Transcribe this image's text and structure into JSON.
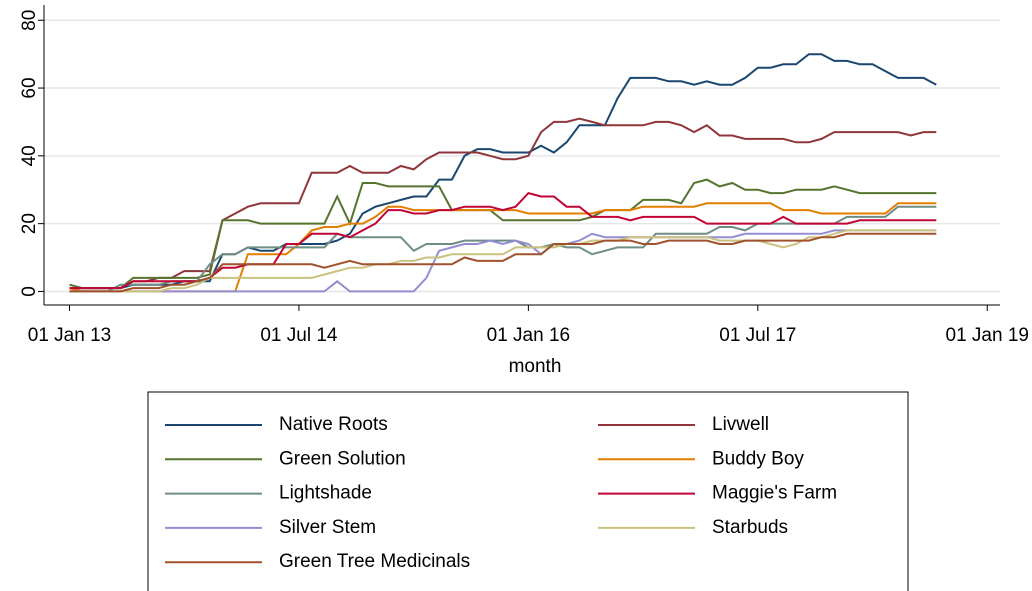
{
  "chart_data": {
    "type": "line",
    "x_label": "month",
    "x": [
      0,
      1,
      2,
      3,
      4,
      5,
      6,
      7,
      8,
      9,
      10,
      11,
      12,
      13,
      14,
      15,
      16,
      17,
      18,
      19,
      20,
      21,
      22,
      23,
      24,
      25,
      26,
      27,
      28,
      29,
      30,
      31,
      32,
      33,
      34,
      35,
      36,
      37,
      38,
      39,
      40,
      41,
      42,
      43,
      44,
      45,
      46,
      47,
      48,
      49,
      50,
      51,
      52,
      53,
      54,
      55,
      56,
      57,
      58,
      59,
      60,
      61,
      62,
      63,
      64,
      65,
      66,
      67,
      68
    ],
    "xlim": [
      -2,
      73
    ],
    "xticks": [
      {
        "value": 0,
        "label": "01 Jan 13"
      },
      {
        "value": 18,
        "label": "01 Jul 14"
      },
      {
        "value": 36,
        "label": "01 Jan 16"
      },
      {
        "value": 54,
        "label": "01 Jul 17"
      },
      {
        "value": 72,
        "label": "01 Jan 19"
      }
    ],
    "ylim": [
      -4,
      84.5
    ],
    "yticks": [
      0,
      20,
      40,
      60,
      80
    ],
    "grid": true,
    "legend": "bottom",
    "series": [
      {
        "name": "Native Roots",
        "color": "#1a476f",
        "values": [
          1,
          1,
          1,
          1,
          1,
          2,
          2,
          2,
          2,
          3,
          3,
          3,
          11,
          11,
          13,
          12,
          12,
          14,
          14,
          14,
          14,
          15,
          17,
          23,
          25,
          26,
          27,
          28,
          28,
          33,
          33,
          40,
          42,
          42,
          41,
          41,
          41,
          43,
          41,
          44,
          49,
          49,
          49,
          57,
          63,
          63,
          63,
          62,
          62,
          61,
          62,
          61,
          61,
          63,
          66,
          66,
          67,
          67,
          70,
          70,
          68,
          68,
          67,
          67,
          65,
          63,
          63,
          63,
          61
        ]
      },
      {
        "name": "Livwell",
        "color": "#90353b",
        "values": [
          1,
          1,
          1,
          1,
          1,
          3,
          3,
          4,
          4,
          6,
          6,
          6,
          21,
          23,
          25,
          26,
          26,
          26,
          26,
          35,
          35,
          35,
          37,
          35,
          35,
          35,
          37,
          36,
          39,
          41,
          41,
          41,
          41,
          40,
          39,
          39,
          40,
          47,
          50,
          50,
          51,
          50,
          49,
          49,
          49,
          49,
          50,
          50,
          49,
          47,
          49,
          46,
          46,
          45,
          45,
          45,
          45,
          44,
          44,
          45,
          47,
          47,
          47,
          47,
          47,
          47,
          46,
          47,
          47
        ]
      },
      {
        "name": "Green Solution",
        "color": "#55752f",
        "values": [
          2,
          1,
          1,
          1,
          1,
          4,
          4,
          4,
          4,
          4,
          4,
          5,
          21,
          21,
          21,
          20,
          20,
          20,
          20,
          20,
          20,
          28,
          20,
          32,
          32,
          31,
          31,
          31,
          31,
          31,
          24,
          24,
          24,
          24,
          21,
          21,
          21,
          21,
          21,
          21,
          21,
          22,
          24,
          24,
          24,
          27,
          27,
          27,
          26,
          32,
          33,
          31,
          32,
          30,
          30,
          29,
          29,
          30,
          30,
          30,
          31,
          30,
          29,
          29,
          29,
          29,
          29,
          29,
          29
        ]
      },
      {
        "name": "Buddy Boy",
        "color": "#e37e00",
        "values": [
          1,
          0,
          0,
          0,
          0,
          0,
          0,
          0,
          0,
          0,
          0,
          0,
          0,
          0,
          11,
          11,
          11,
          11,
          14,
          18,
          19,
          19,
          20,
          20,
          22,
          25,
          25,
          24,
          24,
          24,
          24,
          24,
          24,
          24,
          24,
          24,
          23,
          23,
          23,
          23,
          23,
          23,
          24,
          24,
          24,
          25,
          25,
          25,
          25,
          25,
          26,
          26,
          26,
          26,
          26,
          26,
          24,
          24,
          24,
          23,
          23,
          23,
          23,
          23,
          23,
          26,
          26,
          26,
          26
        ]
      },
      {
        "name": "Lightshade",
        "color": "#6e8e84",
        "values": [
          0,
          0,
          0,
          0,
          2,
          2,
          2,
          2,
          3,
          3,
          3,
          8,
          11,
          11,
          13,
          13,
          13,
          13,
          13,
          13,
          13,
          17,
          16,
          16,
          16,
          16,
          16,
          12,
          14,
          14,
          14,
          15,
          15,
          15,
          15,
          15,
          13,
          13,
          14,
          13,
          13,
          11,
          12,
          13,
          13,
          13,
          17,
          17,
          17,
          17,
          17,
          19,
          19,
          18,
          20,
          20,
          20,
          20,
          20,
          20,
          20,
          22,
          22,
          22,
          22,
          25,
          25,
          25,
          25
        ]
      },
      {
        "name": "Maggie's Farm",
        "color": "#c10534",
        "values": [
          1,
          1,
          1,
          1,
          1,
          3,
          3,
          3,
          3,
          3,
          3,
          4,
          7,
          7,
          8,
          8,
          8,
          14,
          14,
          17,
          17,
          17,
          16,
          18,
          20,
          24,
          24,
          23,
          23,
          24,
          24,
          25,
          25,
          25,
          24,
          25,
          29,
          28,
          28,
          25,
          25,
          22,
          22,
          22,
          21,
          22,
          22,
          22,
          22,
          22,
          20,
          20,
          20,
          20,
          20,
          20,
          22,
          20,
          20,
          20,
          20,
          20,
          21,
          21,
          21,
          21,
          21,
          21,
          21
        ]
      },
      {
        "name": "Silver Stem",
        "color": "#938dd2",
        "values": [
          0,
          0,
          0,
          0,
          0,
          0,
          0,
          0,
          0,
          0,
          0,
          0,
          0,
          0,
          0,
          0,
          0,
          0,
          0,
          0,
          0,
          3,
          0,
          0,
          0,
          0,
          0,
          0,
          4,
          12,
          13,
          14,
          14,
          15,
          14,
          15,
          14,
          11,
          14,
          14,
          15,
          17,
          16,
          16,
          16,
          16,
          16,
          16,
          16,
          16,
          16,
          16,
          16,
          17,
          17,
          17,
          17,
          17,
          17,
          17,
          18,
          18,
          18,
          18,
          18,
          18,
          18,
          18,
          18
        ]
      },
      {
        "name": "Starbuds",
        "color": "#cac27e",
        "values": [
          0,
          0,
          0,
          0,
          0,
          0,
          0,
          0,
          1,
          1,
          2,
          4,
          4,
          4,
          4,
          4,
          4,
          4,
          4,
          4,
          5,
          6,
          7,
          7,
          8,
          8,
          9,
          9,
          10,
          10,
          11,
          11,
          11,
          11,
          11,
          13,
          13,
          13,
          13,
          14,
          14,
          15,
          15,
          15,
          16,
          16,
          16,
          16,
          16,
          16,
          16,
          15,
          15,
          15,
          15,
          14,
          13,
          14,
          16,
          16,
          17,
          18,
          18,
          18,
          18,
          18,
          18,
          18,
          18
        ]
      },
      {
        "name": "Green Tree Medicinals",
        "color": "#a0522d",
        "values": [
          0,
          0,
          0,
          0,
          0,
          1,
          1,
          1,
          2,
          2,
          3,
          4,
          8,
          8,
          8,
          8,
          8,
          8,
          8,
          8,
          7,
          8,
          9,
          8,
          8,
          8,
          8,
          8,
          8,
          8,
          8,
          10,
          9,
          9,
          9,
          11,
          11,
          11,
          14,
          14,
          14,
          14,
          15,
          15,
          15,
          14,
          14,
          15,
          15,
          15,
          15,
          14,
          14,
          15,
          15,
          15,
          15,
          15,
          15,
          16,
          16,
          17,
          17,
          17,
          17,
          17,
          17,
          17,
          17
        ]
      }
    ]
  }
}
